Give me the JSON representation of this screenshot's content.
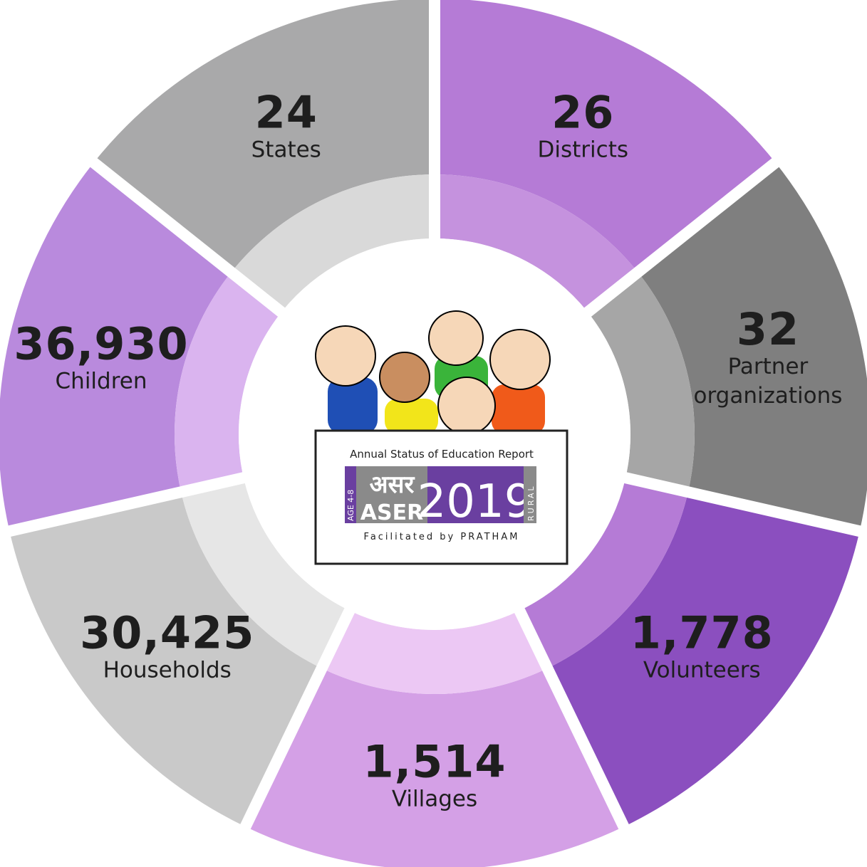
{
  "segments": [
    {
      "value": "26",
      "label": "Districts"
    },
    {
      "value": "32",
      "label": "Partner organizations"
    },
    {
      "value": "1,778",
      "label": "Volunteers"
    },
    {
      "value": "1,514",
      "label": "Villages"
    },
    {
      "value": "30,425",
      "label": "Households"
    },
    {
      "value": "36,930",
      "label": "Children"
    },
    {
      "value": "24",
      "label": "States"
    }
  ],
  "logo": {
    "title": "Annual Status of Education Report",
    "age": "AGE 4-8",
    "hindi": "असर",
    "name": "ASER",
    "year": "2019",
    "rural": "RURAL",
    "footer": "Facilitated by PRATHAM"
  }
}
